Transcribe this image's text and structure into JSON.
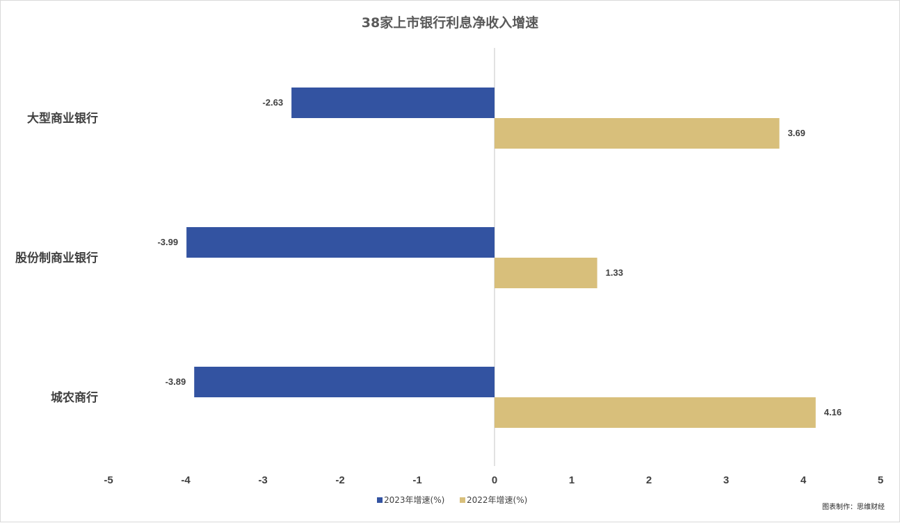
{
  "chart_data": {
    "type": "bar",
    "orientation": "horizontal",
    "title": "38家上市银行利息净收入增速",
    "categories": [
      "大型商业银行",
      "股份制商业银行",
      "城农商行"
    ],
    "series": [
      {
        "name": "2023年增速(%)",
        "color": "#3353a1",
        "values": [
          -2.63,
          -3.99,
          -3.89
        ]
      },
      {
        "name": "2022年增速(%)",
        "color": "#d8bf7b",
        "values": [
          3.69,
          1.33,
          4.16
        ]
      }
    ],
    "xlim": [
      -5,
      5
    ],
    "xticks": [
      -5,
      -4,
      -3,
      -2,
      -1,
      0,
      1,
      2,
      3,
      4,
      5
    ],
    "grid": false,
    "legend_position": "bottom-center"
  },
  "credit": "图表制作：思维财经"
}
